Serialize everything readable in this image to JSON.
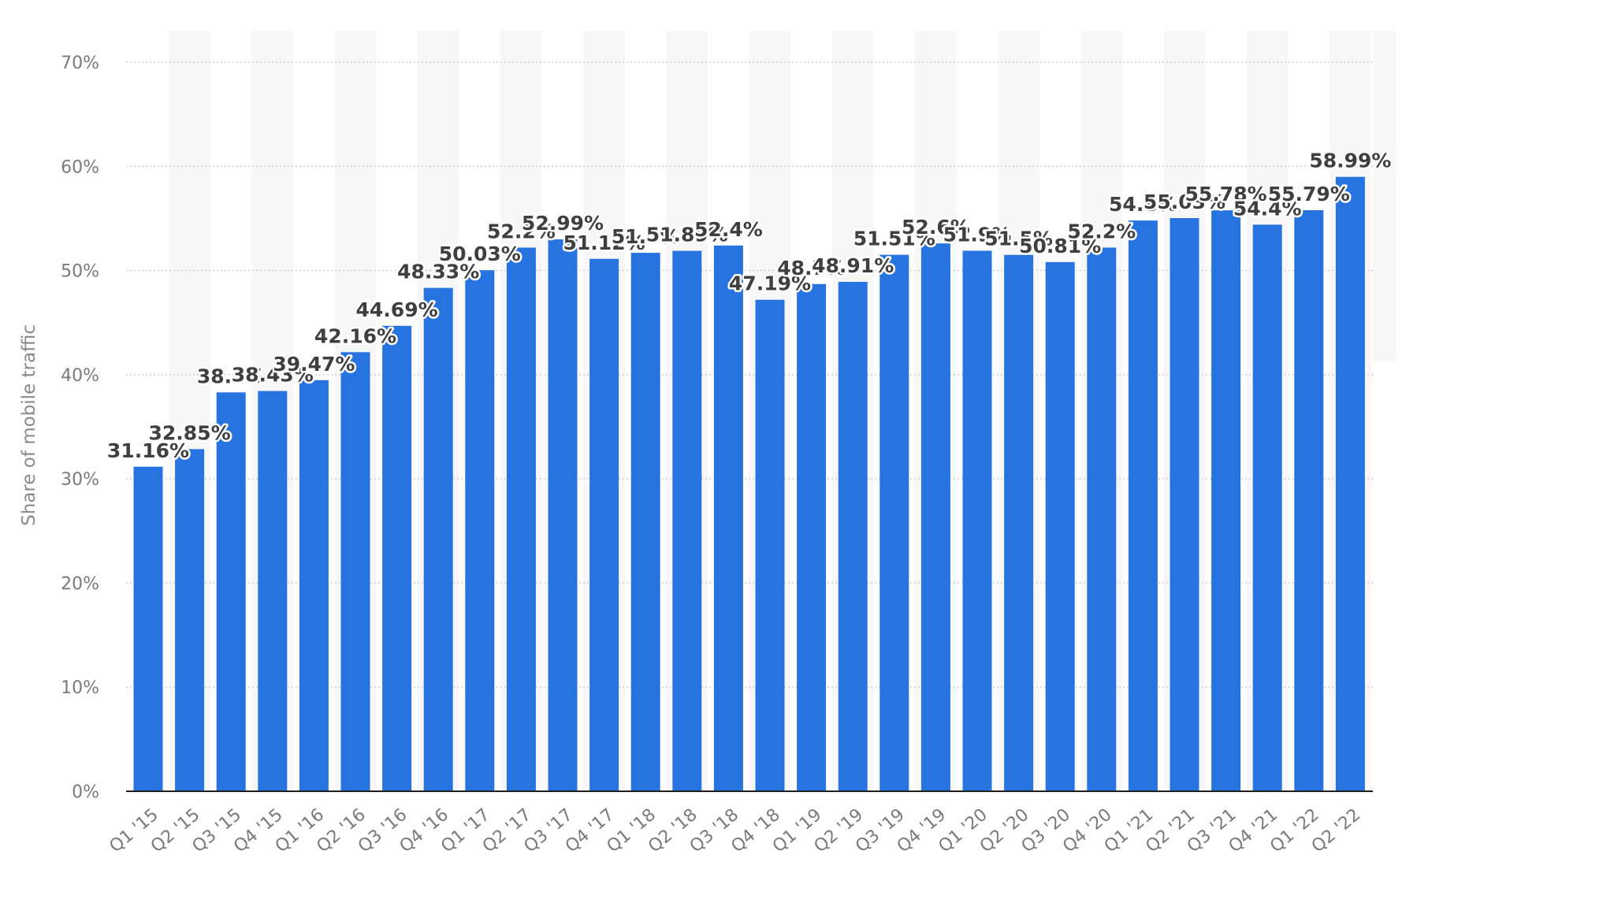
{
  "chart_data": {
    "type": "bar",
    "title": "",
    "xlabel": "",
    "ylabel": "Share of mobile traffic",
    "ylim": [
      0,
      70
    ],
    "yticks": [
      0,
      10,
      20,
      30,
      40,
      50,
      60,
      70
    ],
    "ytick_labels": [
      "0%",
      "10%",
      "20%",
      "30%",
      "40%",
      "50%",
      "60%",
      "70%"
    ],
    "grid": true,
    "legend": "none",
    "bar_color": "#2774e0",
    "categories": [
      "Q1 '15",
      "Q2 '15",
      "Q3 '15",
      "Q4 '15",
      "Q1 '16",
      "Q2 '16",
      "Q3 '16",
      "Q4 '16",
      "Q1 '17",
      "Q2 '17",
      "Q3 '17",
      "Q4 '17",
      "Q1 '18",
      "Q2 '18",
      "Q3 '18",
      "Q4 '18",
      "Q1 '19",
      "Q2 '19",
      "Q3 '19",
      "Q4 '19",
      "Q1 '20",
      "Q2 '20",
      "Q3 '20",
      "Q4 '20",
      "Q1 '21",
      "Q2 '21",
      "Q3 '21",
      "Q4 '21",
      "Q1 '22",
      "Q2 '22"
    ],
    "values": [
      31.16,
      32.85,
      38.3,
      38.43,
      39.47,
      42.16,
      44.69,
      48.33,
      50.03,
      52.2,
      52.99,
      51.12,
      51.7,
      51.89,
      52.4,
      47.19,
      48.7,
      48.91,
      51.51,
      52.6,
      51.9,
      51.5,
      50.81,
      52.2,
      54.8,
      55.03,
      55.78,
      54.4,
      55.79,
      58.99
    ],
    "data_labels": [
      "31.16%",
      "32.85%",
      "38.3%",
      "38.43%",
      "39.47%",
      "42.16%",
      "44.69%",
      "48.33%",
      "50.03%",
      "52.2%",
      "52.99%",
      "51.12%",
      "51.7%",
      "51.89%",
      "52.4%",
      "47.19%",
      "48.7%",
      "48.91%",
      "51.51%",
      "52.6%",
      "51.9%",
      "51.5%",
      "50.81%",
      "52.2%",
      "54.8%",
      "55.03%",
      "55.78%",
      "54.4%",
      "55.79%",
      "58.99%"
    ]
  }
}
